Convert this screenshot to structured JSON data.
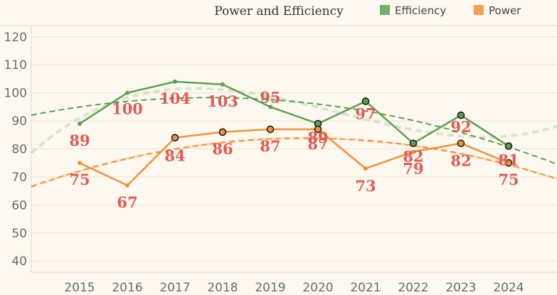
{
  "chart_data": {
    "type": "line",
    "title": "Power and Efficiency",
    "xlabel": "",
    "ylabel": "",
    "categories": [
      "2015",
      "2016",
      "2017",
      "2018",
      "2019",
      "2020",
      "2021",
      "2022",
      "2023",
      "2024"
    ],
    "y_ticks": [
      40,
      50,
      60,
      70,
      80,
      90,
      100,
      110,
      120
    ],
    "ylim": [
      36,
      124
    ],
    "grid": "horizontal",
    "legend_position": "top-right",
    "series": [
      {
        "name": "Efficiency",
        "color": "#5aa052",
        "values": [
          89,
          100,
          104,
          103,
          95,
          89,
          97,
          82,
          92,
          81
        ],
        "labels": [
          "89",
          "100",
          "104",
          "103",
          "95",
          "89",
          "97",
          "82",
          "92",
          "81"
        ]
      },
      {
        "name": "Power",
        "color": "#f0923a",
        "values": [
          75,
          67,
          84,
          86,
          87,
          87,
          73,
          79,
          82,
          75
        ],
        "labels": [
          "75",
          "67",
          "84",
          "86",
          "87",
          "87",
          "73",
          "79",
          "82",
          "75"
        ]
      }
    ],
    "label_color": "#e05a52"
  }
}
